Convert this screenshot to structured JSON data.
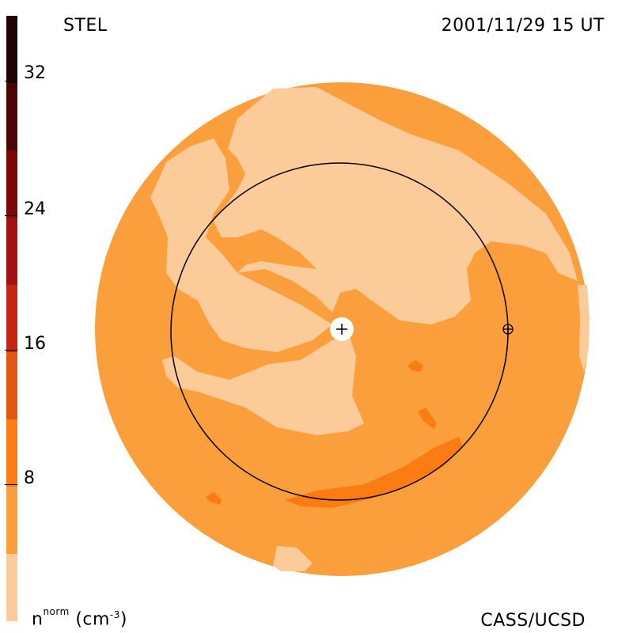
{
  "labels": {
    "top_left": "STEL",
    "top_right": "2001/11/29 15 UT",
    "bottom_right": "CASS/UCSD",
    "units_base": "n",
    "units_sup": "norm",
    "units_paren": "(cm",
    "units_exp": "-3",
    "units_close": ")"
  },
  "colorbar": {
    "ticks": [
      "32",
      "24",
      "16",
      "8"
    ],
    "colors": [
      "#fccb9a",
      "#fb9f3d",
      "#fa7c13",
      "#e25610",
      "#c42612",
      "#a31010",
      "#7a0808",
      "#4b0505",
      "#1f0404"
    ]
  },
  "map_colors": {
    "base": "#fb9f3d",
    "light": "#fccb9a",
    "dark": "#fa7c13",
    "center_disc": "#ffffff"
  }
}
